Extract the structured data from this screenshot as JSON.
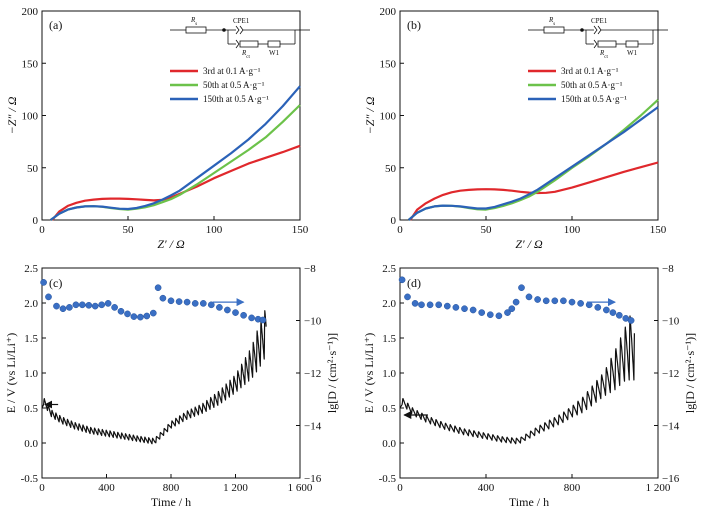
{
  "chart_data": [
    {
      "id": "a",
      "type": "line",
      "panel_label": "(a)",
      "xlabel": "Z′ / Ω",
      "ylabel": "−Z″ / Ω",
      "xlim": [
        0,
        150
      ],
      "ylim": [
        0,
        200
      ],
      "xticks": [
        0,
        50,
        100,
        150
      ],
      "yticks": [
        0,
        50,
        100,
        150,
        200
      ],
      "legend_position": "top-right",
      "circuit": {
        "rs": "R",
        "rs_sub": "s",
        "cpe": "CPE1",
        "rct": "R",
        "rct_sub": "ct",
        "w": "W1"
      },
      "series": [
        {
          "name": "3rd at 0.1 A·g⁻¹",
          "color": "#e0282c",
          "x": [
            6,
            10,
            15,
            20,
            25,
            30,
            35,
            40,
            45,
            50,
            55,
            60,
            65,
            70,
            75,
            80,
            90,
            100,
            110,
            120,
            130,
            140,
            150
          ],
          "y": [
            0,
            8,
            13.5,
            16.5,
            18.5,
            19.5,
            20.2,
            20.5,
            20.5,
            20.2,
            19.8,
            19.2,
            18.8,
            19.3,
            21.5,
            25,
            32,
            40,
            47,
            54,
            59.5,
            65,
            71
          ]
        },
        {
          "name": "50th at 0.5 A·g⁻¹",
          "color": "#6cc24a",
          "x": [
            5,
            10,
            15,
            20,
            25,
            30,
            35,
            40,
            45,
            50,
            55,
            60,
            65,
            70,
            75,
            80,
            90,
            100,
            110,
            120,
            130,
            140,
            150
          ],
          "y": [
            0,
            6,
            10,
            12,
            13,
            13.2,
            12.6,
            11.5,
            10.5,
            10,
            10.8,
            12.2,
            14.2,
            17,
            20,
            24,
            34,
            45,
            56,
            67,
            79,
            94,
            110
          ]
        },
        {
          "name": "150th at 0.5 A·g⁻¹",
          "color": "#2b62b8",
          "x": [
            5,
            10,
            15,
            20,
            25,
            30,
            35,
            40,
            45,
            50,
            55,
            60,
            65,
            70,
            75,
            80,
            90,
            100,
            110,
            120,
            130,
            140,
            150
          ],
          "y": [
            0,
            6,
            10,
            12,
            13,
            13.2,
            12.8,
            11.8,
            10.8,
            10.5,
            11.5,
            13.5,
            16,
            19.5,
            23.5,
            28,
            40,
            52,
            64,
            77,
            92,
            109,
            128
          ]
        }
      ]
    },
    {
      "id": "b",
      "type": "line",
      "panel_label": "(b)",
      "xlabel": "Z′ / Ω",
      "ylabel": "−Z″ / Ω",
      "xlim": [
        0,
        150
      ],
      "ylim": [
        0,
        200
      ],
      "xticks": [
        0,
        50,
        100,
        150
      ],
      "yticks": [
        0,
        50,
        100,
        150,
        200
      ],
      "legend_position": "top-right",
      "circuit": {
        "rs": "R",
        "rs_sub": "s",
        "cpe": "CPE1",
        "rct": "R",
        "rct_sub": "ct",
        "w": "W1"
      },
      "series": [
        {
          "name": "3rd at 0.1 A·g⁻¹",
          "color": "#e0282c",
          "x": [
            6,
            10,
            15,
            20,
            25,
            30,
            35,
            40,
            45,
            50,
            55,
            60,
            65,
            70,
            75,
            80,
            85,
            90,
            100,
            110,
            120,
            130,
            140,
            150
          ],
          "y": [
            0,
            10,
            16,
            20.5,
            24,
            26.5,
            28,
            28.8,
            29.3,
            29.5,
            29.3,
            28.8,
            28,
            27,
            26.2,
            25.8,
            26,
            27,
            31,
            36,
            41,
            46,
            50.5,
            55
          ]
        },
        {
          "name": "50th at 0.5 A·g⁻¹",
          "color": "#6cc24a",
          "x": [
            5,
            10,
            15,
            20,
            25,
            30,
            35,
            40,
            45,
            50,
            55,
            60,
            65,
            70,
            75,
            80,
            90,
            100,
            110,
            120,
            130,
            140,
            150
          ],
          "y": [
            0,
            7,
            11,
            13,
            13.8,
            13.6,
            12.8,
            11.5,
            10.2,
            10,
            11.5,
            13.5,
            16,
            19,
            22.5,
            27,
            38,
            50,
            61,
            73,
            86,
            100,
            115
          ]
        },
        {
          "name": "150th at 0.5 A·g⁻¹",
          "color": "#2b62b8",
          "x": [
            5,
            10,
            15,
            20,
            25,
            30,
            35,
            40,
            45,
            50,
            55,
            60,
            65,
            70,
            75,
            80,
            90,
            100,
            110,
            120,
            130,
            140,
            150
          ],
          "y": [
            0,
            7,
            11,
            13,
            13.8,
            13.6,
            13,
            12,
            11,
            11,
            12.5,
            15,
            17.5,
            20.5,
            24.5,
            29,
            40,
            51,
            62,
            73,
            84,
            96,
            108
          ]
        }
      ]
    },
    {
      "id": "c",
      "type": "line",
      "panel_label": "(c)",
      "xlabel": "Time / h",
      "ylabel": "E / V (vs Li/Li⁺)",
      "ylabel2": "lg[D / (cm²·s⁻¹)]",
      "xlim": [
        0,
        1600
      ],
      "ylim": [
        -0.5,
        2.5
      ],
      "y2lim": [
        -16,
        -8
      ],
      "xticks": [
        0,
        400,
        800,
        1200,
        1600
      ],
      "xtick_labels": [
        "0",
        "400",
        "800",
        "1 200",
        "1 600"
      ],
      "yticks": [
        -0.5,
        0.0,
        0.5,
        1.0,
        1.5,
        2.0,
        2.5
      ],
      "y2ticks": [
        -16,
        -14,
        -12,
        -10,
        -8
      ],
      "arrows": [
        {
          "axis": "left",
          "x_from": 100,
          "x_to": 20,
          "y": 0.55
        },
        {
          "axis": "right",
          "x_from": 1060,
          "x_to": 1250,
          "y": -9.3
        }
      ],
      "series": [
        {
          "name": "",
          "axis": "left",
          "kind": "line",
          "color": "#111111",
          "x_range": [
            0,
            1390
          ],
          "peak_time": 10,
          "oscillation_period_h": 24,
          "baseline": {
            "x": [
              0,
              10,
              60,
              120,
              200,
              300,
              400,
              500,
              600,
              680,
              700,
              800,
              900,
              1000,
              1100,
              1200,
              1300,
              1350,
              1390
            ],
            "y": [
              0.5,
              0.6,
              0.42,
              0.33,
              0.25,
              0.18,
              0.14,
              0.1,
              0.06,
              0.03,
              0.03,
              0.26,
              0.4,
              0.5,
              0.65,
              0.85,
              1.15,
              1.4,
              1.6
            ]
          },
          "amplitude": {
            "x": [
              0,
              100,
              600,
              700,
              1000,
              1200,
              1300,
              1350,
              1390
            ],
            "y": [
              0.05,
              0.05,
              0.04,
              0.04,
              0.07,
              0.13,
              0.23,
              0.32,
              0.35
            ]
          }
        },
        {
          "name": "",
          "axis": "right",
          "kind": "scatter",
          "color": "#3a6fc4",
          "x": [
            10,
            40,
            90,
            130,
            170,
            210,
            250,
            290,
            330,
            370,
            410,
            450,
            490,
            530,
            570,
            610,
            650,
            690,
            720,
            750,
            800,
            850,
            900,
            950,
            1000,
            1050,
            1100,
            1150,
            1200,
            1250,
            1300,
            1340,
            1370
          ],
          "y": [
            -8.55,
            -9.1,
            -9.45,
            -9.55,
            -9.5,
            -9.4,
            -9.4,
            -9.42,
            -9.45,
            -9.4,
            -9.35,
            -9.5,
            -9.65,
            -9.75,
            -9.85,
            -9.87,
            -9.83,
            -9.72,
            -8.75,
            -9.15,
            -9.25,
            -9.28,
            -9.3,
            -9.35,
            -9.35,
            -9.4,
            -9.5,
            -9.6,
            -9.7,
            -9.8,
            -9.9,
            -9.95,
            -9.98
          ]
        }
      ]
    },
    {
      "id": "d",
      "type": "line",
      "panel_label": "(d)",
      "xlabel": "Time / h",
      "ylabel": "E / V (vs Li/Li⁺)",
      "ylabel2": "lg[D / (cm²·s⁻¹)]",
      "xlim": [
        0,
        1200
      ],
      "ylim": [
        -0.5,
        2.5
      ],
      "y2lim": [
        -16,
        -8
      ],
      "xticks": [
        0,
        400,
        800,
        1200
      ],
      "xtick_labels": [
        "0",
        "400",
        "800",
        "1 200"
      ],
      "yticks": [
        -0.5,
        0.0,
        0.5,
        1.0,
        1.5,
        2.0,
        2.5
      ],
      "y2ticks": [
        -16,
        -14,
        -12,
        -10,
        -8
      ],
      "arrows": [
        {
          "axis": "left",
          "x_from": 130,
          "x_to": 20,
          "y": 0.4
        },
        {
          "axis": "right",
          "x_from": 870,
          "x_to": 1000,
          "y": -9.3
        }
      ],
      "series": [
        {
          "name": "",
          "axis": "left",
          "kind": "line",
          "color": "#111111",
          "x_range": [
            0,
            1090
          ],
          "peak_time": 10,
          "oscillation_period_h": 22,
          "baseline": {
            "x": [
              0,
              10,
              60,
              120,
              200,
              300,
              400,
              480,
              540,
              560,
              650,
              750,
              850,
              950,
              1000,
              1050,
              1090
            ],
            "y": [
              0.5,
              0.6,
              0.45,
              0.35,
              0.25,
              0.16,
              0.1,
              0.05,
              0.03,
              0.04,
              0.2,
              0.35,
              0.55,
              0.85,
              1.05,
              1.3,
              1.45
            ]
          },
          "amplitude": {
            "x": [
              0,
              100,
              500,
              560,
              800,
              950,
              1050,
              1090
            ],
            "y": [
              0.05,
              0.05,
              0.04,
              0.04,
              0.08,
              0.18,
              0.4,
              0.55
            ]
          }
        },
        {
          "name": "",
          "axis": "right",
          "kind": "scatter",
          "color": "#3a6fc4",
          "x": [
            10,
            35,
            70,
            100,
            140,
            180,
            220,
            260,
            300,
            340,
            380,
            420,
            460,
            500,
            520,
            540,
            565,
            600,
            640,
            680,
            720,
            760,
            800,
            840,
            880,
            920,
            960,
            990,
            1020,
            1050,
            1075
          ],
          "y": [
            -8.45,
            -9.1,
            -9.35,
            -9.4,
            -9.4,
            -9.4,
            -9.45,
            -9.5,
            -9.55,
            -9.6,
            -9.7,
            -9.78,
            -9.82,
            -9.7,
            -9.55,
            -9.3,
            -8.75,
            -9.1,
            -9.2,
            -9.25,
            -9.25,
            -9.25,
            -9.3,
            -9.35,
            -9.4,
            -9.5,
            -9.6,
            -9.7,
            -9.8,
            -9.92,
            -10.0
          ]
        }
      ]
    }
  ]
}
